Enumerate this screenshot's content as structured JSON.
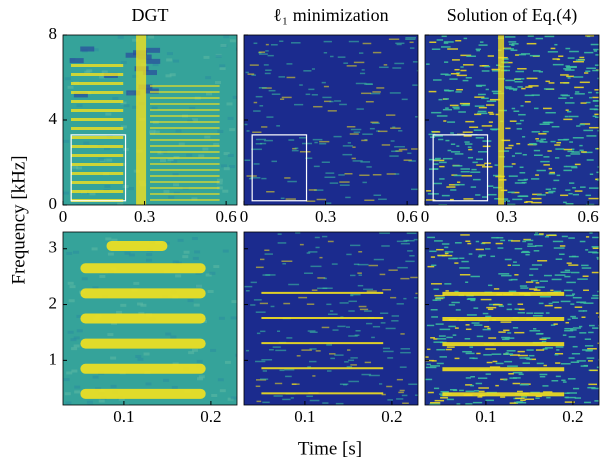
{
  "figure": {
    "xlabel": "Time [s]",
    "ylabel": "Frequency [kHz]"
  },
  "chart_data": [
    {
      "type": "heatmap",
      "title": "DGT",
      "color": "#35a39a",
      "xlim": [
        0,
        0.64
      ],
      "xticks": [
        0,
        0.3,
        0.6
      ],
      "ylim": [
        0,
        8
      ],
      "yticks": [
        0,
        4,
        8
      ]
    },
    {
      "type": "heatmap",
      "title": "ℓ₁ minimization",
      "color": "#1b2b8e",
      "xlim": [
        0,
        0.64
      ],
      "xticks": [
        0,
        0.3,
        0.6
      ],
      "ylim": [
        0,
        8
      ],
      "yticks": [
        0,
        4,
        8
      ]
    },
    {
      "type": "heatmap",
      "title": "Solution of Eq.(4)",
      "color": "#1d3290",
      "xlim": [
        0,
        0.64
      ],
      "xticks": [
        0,
        0.3,
        0.6
      ],
      "ylim": [
        0,
        8
      ],
      "yticks": [
        0,
        4,
        8
      ]
    },
    {
      "type": "heatmap",
      "color": "#35a39a",
      "xlim": [
        0.03,
        0.23
      ],
      "xticks": [
        0.1,
        0.2
      ],
      "ylim": [
        0.2,
        3.3
      ],
      "yticks": [
        1,
        2,
        3
      ]
    },
    {
      "type": "heatmap",
      "color": "#1b2b8e",
      "xlim": [
        0.03,
        0.23
      ],
      "xticks": [
        0.1,
        0.2
      ],
      "ylim": [
        0.2,
        3.3
      ],
      "yticks": [
        1,
        2,
        3
      ]
    },
    {
      "type": "heatmap",
      "color": "#1d3290",
      "xlim": [
        0.03,
        0.23
      ],
      "xticks": [
        0.1,
        0.2
      ],
      "ylim": [
        0.2,
        3.3
      ],
      "yticks": [
        1,
        2,
        3
      ]
    }
  ]
}
